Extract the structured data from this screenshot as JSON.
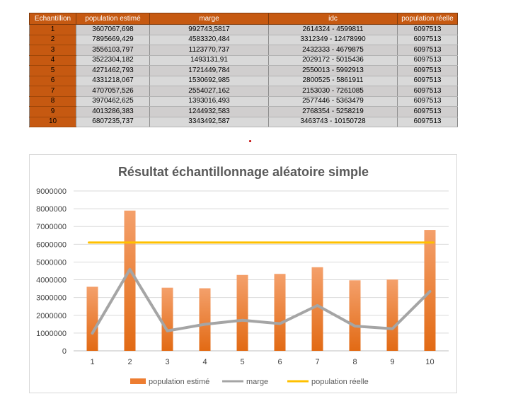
{
  "table": {
    "headers": [
      "Echantillion",
      "population estimé",
      "marge",
      "idc",
      "population réelle"
    ],
    "rows": [
      [
        "1",
        "3607067,698",
        "992743,5817",
        "2614324 - 4599811",
        "6097513"
      ],
      [
        "2",
        "7895669,429",
        "4583320,484",
        "3312349 - 12478990",
        "6097513"
      ],
      [
        "3",
        "3556103,797",
        "1123770,737",
        "2432333 - 4679875",
        "6097513"
      ],
      [
        "4",
        "3522304,182",
        "1493131,91",
        "2029172 - 5015436",
        "6097513"
      ],
      [
        "5",
        "4271462,793",
        "1721449,784",
        "2550013 - 5992913",
        "6097513"
      ],
      [
        "6",
        "4331218,067",
        "1530692,985",
        "2800525 - 5861911",
        "6097513"
      ],
      [
        "7",
        "4707057,526",
        "2554027,162",
        "2153030 - 7261085",
        "6097513"
      ],
      [
        "8",
        "3970462,625",
        "1393016,493",
        "2577446 - 5363479",
        "6097513"
      ],
      [
        "9",
        "4013286,383",
        "1244932,583",
        "2768354 - 5258219",
        "6097513"
      ],
      [
        "10",
        "6807235,737",
        "3343492,587",
        "3463743 - 10150728",
        "6097513"
      ]
    ]
  },
  "chart_data": {
    "type": "bar",
    "title": "Résultat échantillonnage aléatoire simple",
    "xlabel": "",
    "ylabel": "",
    "categories": [
      "1",
      "2",
      "3",
      "4",
      "5",
      "6",
      "7",
      "8",
      "9",
      "10"
    ],
    "ylim": [
      0,
      9000000
    ],
    "yticks": [
      0,
      1000000,
      2000000,
      3000000,
      4000000,
      5000000,
      6000000,
      7000000,
      8000000,
      9000000
    ],
    "grid": true,
    "legend": "bottom",
    "series": [
      {
        "name": "population estimé",
        "type": "bar",
        "color": "#ed7d31",
        "values": [
          3607067.698,
          7895669.429,
          3556103.797,
          3522304.182,
          4271462.793,
          4331218.067,
          4707057.526,
          3970462.625,
          4013286.383,
          6807235.737
        ]
      },
      {
        "name": "marge",
        "type": "line",
        "color": "#a5a5a5",
        "values": [
          992743.5817,
          4583320.484,
          1123770.737,
          1493131.91,
          1721449.784,
          1530692.985,
          2554027.162,
          1393016.493,
          1244932.583,
          3343492.587
        ]
      },
      {
        "name": "population réelle",
        "type": "line",
        "color": "#ffc000",
        "values": [
          6097513,
          6097513,
          6097513,
          6097513,
          6097513,
          6097513,
          6097513,
          6097513,
          6097513,
          6097513
        ]
      }
    ]
  }
}
